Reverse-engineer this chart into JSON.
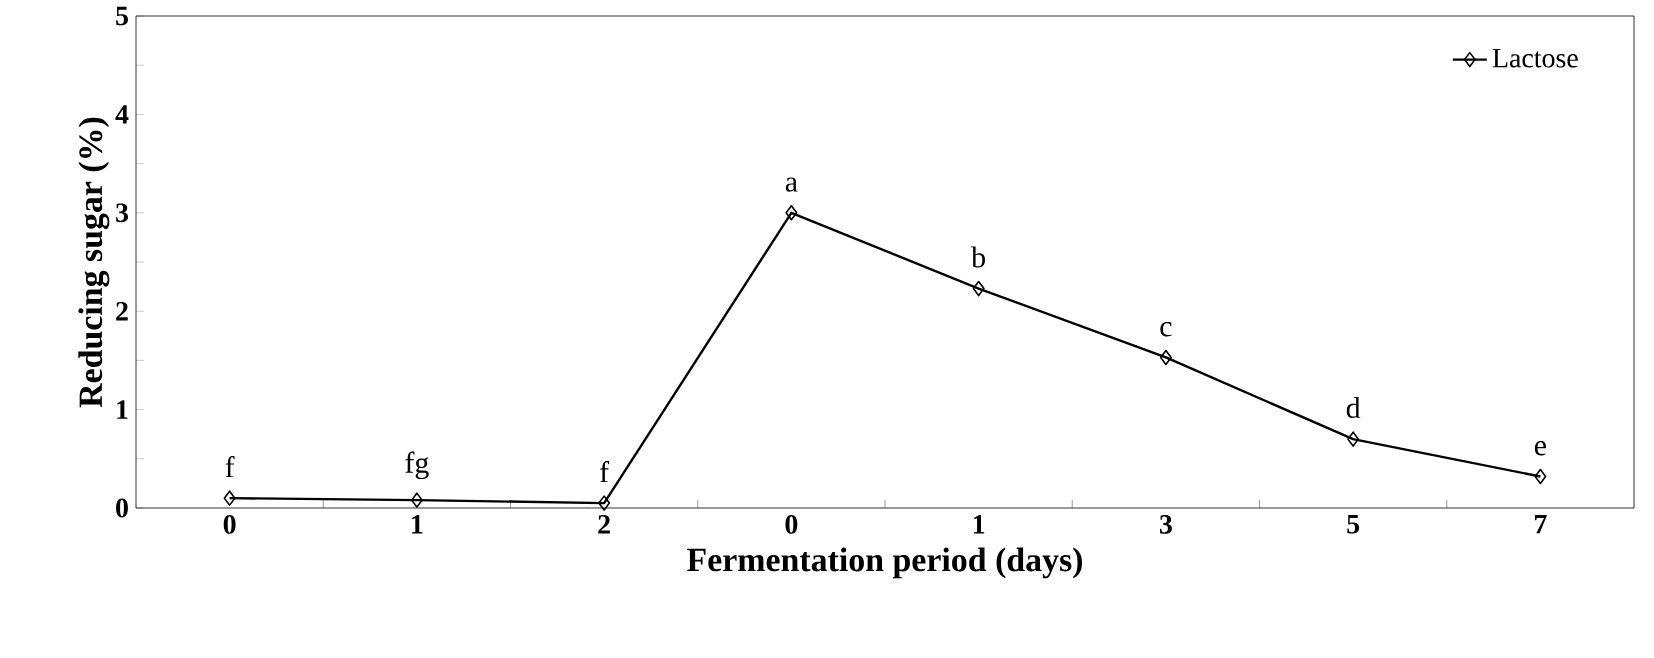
{
  "chart_data": {
    "type": "line",
    "xlabel": "Fermentation period (days)",
    "ylabel": "Reducing sugar (%)",
    "categories": [
      "0",
      "1",
      "2",
      "0",
      "1",
      "3",
      "5",
      "7"
    ],
    "series": [
      {
        "name": "Lactose",
        "color": "#000000",
        "values": [
          0.1,
          0.08,
          0.05,
          3.0,
          2.23,
          1.53,
          0.7,
          0.32
        ],
        "value_labels": [
          "f",
          "fg",
          "f",
          "a",
          "b",
          "c",
          "d",
          "e"
        ]
      }
    ],
    "ylim": [
      0,
      5
    ],
    "yticks": [
      0,
      1,
      2,
      3,
      4,
      5
    ],
    "grid": false,
    "legend": "top right",
    "marker": "diamond",
    "line_style": "solid"
  }
}
